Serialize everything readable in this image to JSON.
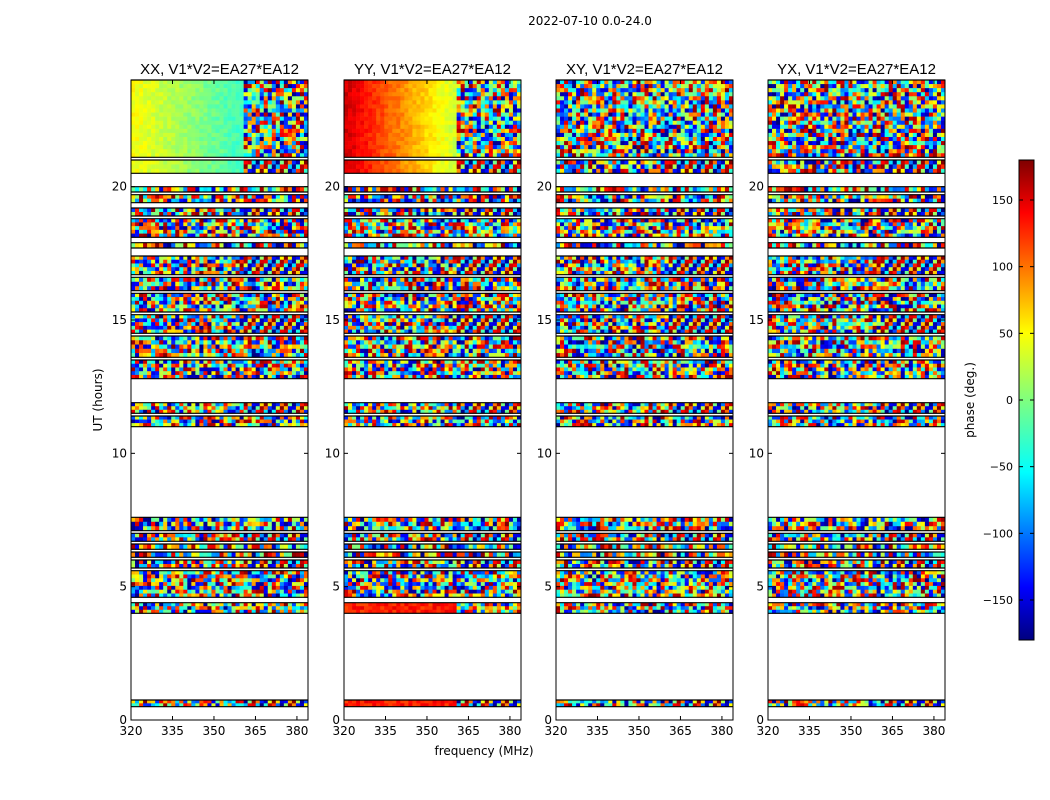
{
  "figure": {
    "suptitle": "2022-07-10 0.0-24.0"
  },
  "chart_data": {
    "type": "heatmap",
    "title": "2022-07-10 0.0-24.0",
    "xlabel": "frequency (MHz)",
    "ylabel": "UT (hours)",
    "xlim": [
      320,
      384
    ],
    "ylim": [
      0,
      24
    ],
    "xticks": [
      320,
      335,
      350,
      365,
      380
    ],
    "yticks": [
      0,
      5,
      10,
      15,
      20
    ],
    "panels": [
      {
        "title": "XX, V1*V2=EA27*EA12",
        "pol": "XX",
        "baseline": "EA27*EA12"
      },
      {
        "title": "YY, V1*V2=EA27*EA12",
        "pol": "YY",
        "baseline": "EA27*EA12"
      },
      {
        "title": "XY, V1*V2=EA27*EA12",
        "pol": "XY",
        "baseline": "EA27*EA12"
      },
      {
        "title": "YX, V1*V2=EA27*EA12",
        "pol": "YX",
        "baseline": "EA27*EA12"
      }
    ],
    "data_time_ranges_hours": [
      [
        0.5,
        0.75
      ],
      [
        4.0,
        4.4
      ],
      [
        4.6,
        5.6
      ],
      [
        5.7,
        6.0
      ],
      [
        6.1,
        6.3
      ],
      [
        6.4,
        6.6
      ],
      [
        6.7,
        7.0
      ],
      [
        7.1,
        7.6
      ],
      [
        11.0,
        11.4
      ],
      [
        11.5,
        11.9
      ],
      [
        12.8,
        13.5
      ],
      [
        13.6,
        14.4
      ],
      [
        14.5,
        15.2
      ],
      [
        15.3,
        16.0
      ],
      [
        16.1,
        16.6
      ],
      [
        16.7,
        17.4
      ],
      [
        17.7,
        17.9
      ],
      [
        18.1,
        18.8
      ],
      [
        18.9,
        19.2
      ],
      [
        19.4,
        19.7
      ],
      [
        19.8,
        20.0
      ],
      [
        20.5,
        21.0
      ],
      [
        21.1,
        24.0
      ]
    ],
    "smooth_gradient_time_ranges_hours": [
      [
        21.1,
        24.0
      ],
      [
        20.5,
        21.0
      ]
    ],
    "colorbar": {
      "label": "phase (deg.)",
      "range": [
        -180,
        180
      ],
      "ticks": [
        -150,
        -100,
        -50,
        0,
        50,
        100,
        150
      ],
      "tick_labels": [
        "−150",
        "−100",
        "−50",
        "0",
        "50",
        "100",
        "150"
      ],
      "colormap": "jet"
    }
  }
}
